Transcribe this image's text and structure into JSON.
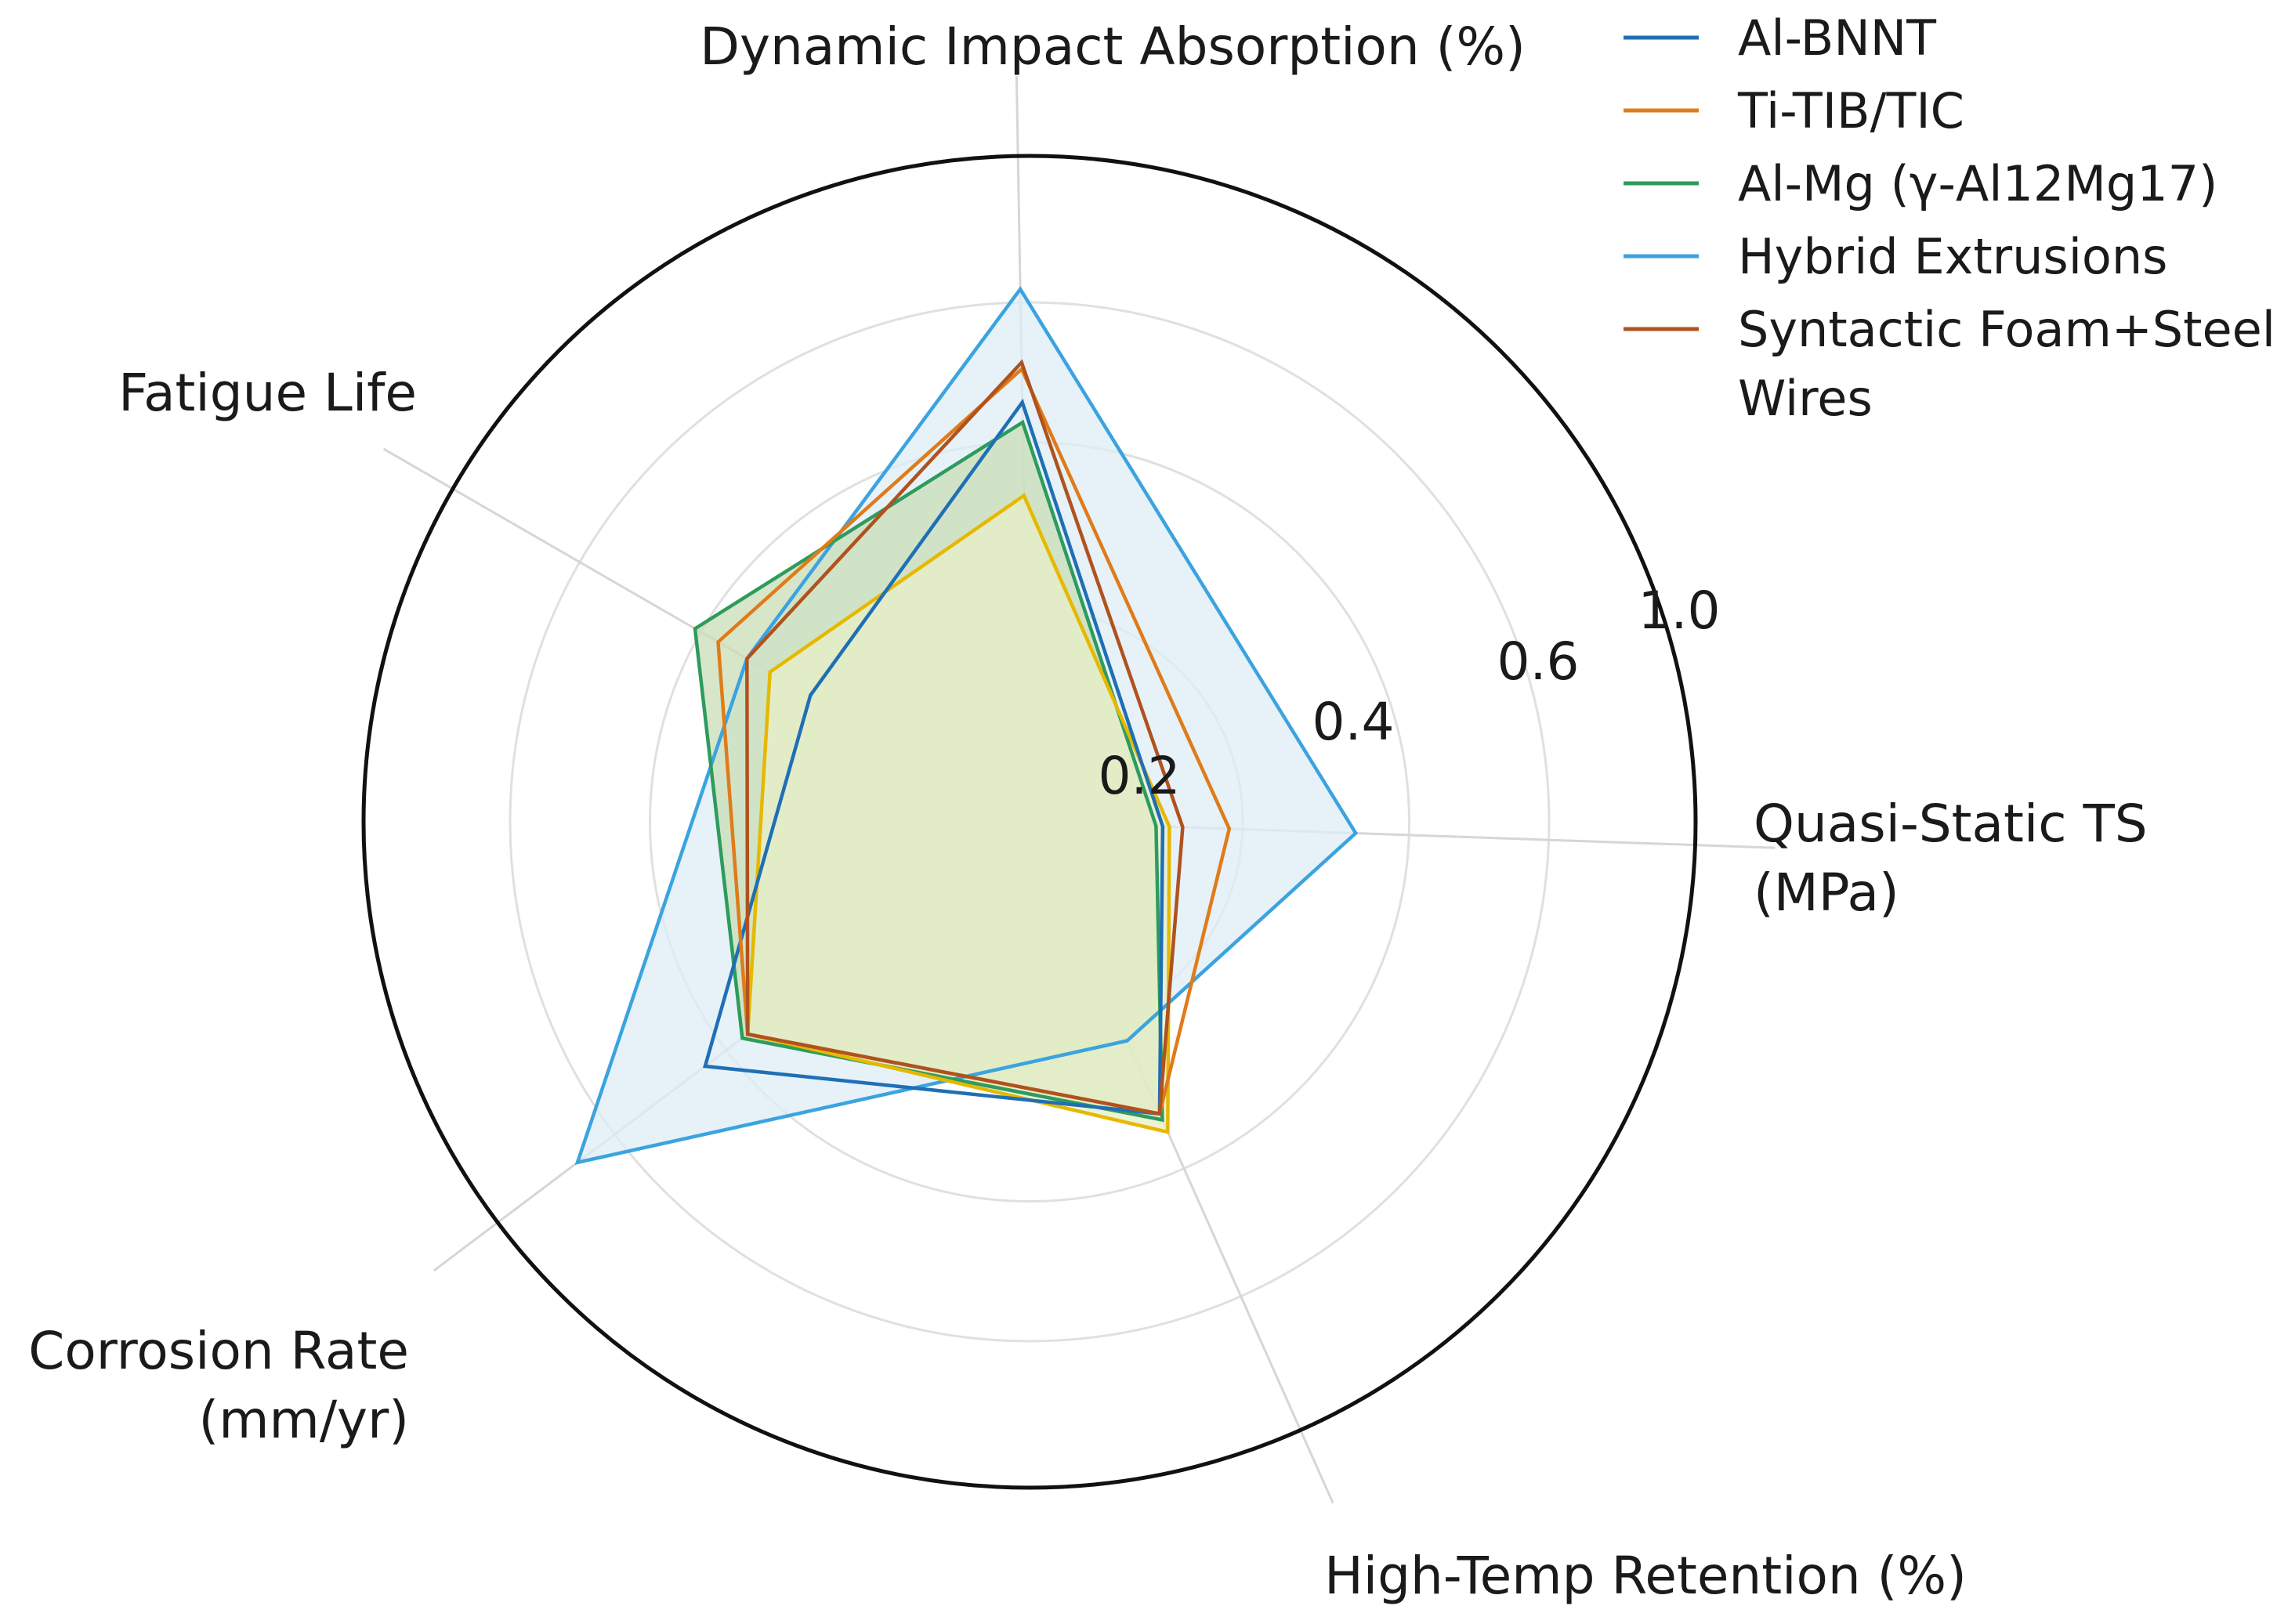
{
  "chart_data": {
    "type": "radar",
    "title": "",
    "axes": [
      {
        "name": "Dynamic Impact Absorption (%)",
        "lines": [
          "Dynamic Impact Absorption (%)"
        ]
      },
      {
        "name": "Quasi-Static TS (MPa)",
        "lines": [
          "Quasi-Static TS",
          "(MPa)"
        ]
      },
      {
        "name": "High-Temp Retention (%)",
        "lines": [
          "High-Temp Retention (%)"
        ]
      },
      {
        "name": "Corrosion Rate (mm/yr)",
        "lines": [
          "Corrosion Rate",
          "(mm/yr)"
        ]
      },
      {
        "name": "Fatigue Life",
        "lines": [
          "Fatigue Life"
        ]
      }
    ],
    "radial_ticks": [
      "0.2",
      "0.4",
      "0.6",
      "1.0"
    ],
    "radial_range": [
      0,
      1.0
    ],
    "series": [
      {
        "name": "Al-BNNT",
        "lines": [
          "Al-BNNT"
        ],
        "color": "#1f6fb5",
        "values": [
          0.63,
          0.2,
          0.48,
          0.61,
          0.38
        ],
        "fill": false
      },
      {
        "name": "Ti-TIB/TIC",
        "lines": [
          "Ti-TIB/TIC"
        ],
        "color": "#e07b1a",
        "values": [
          0.68,
          0.3,
          0.48,
          0.53,
          0.54
        ],
        "fill": false
      },
      {
        "name": "Al-Mg (γ-Al12Mg17)",
        "lines": [
          "Al-Mg (γ-Al12Mg17)"
        ],
        "color": "#2e9b5e",
        "values": [
          0.6,
          0.19,
          0.49,
          0.54,
          0.58
        ],
        "fill": true,
        "fill_color": "#c9ddb6"
      },
      {
        "name": "Hybrid Extrusions",
        "lines": [
          "Hybrid Extrusions"
        ],
        "color": "#3ba3e0",
        "values": [
          0.8,
          0.49,
          0.36,
          0.85,
          0.49
        ],
        "fill": true,
        "fill_color": "#deedf6"
      },
      {
        "name": "Syntactic Foam+Steel Wires",
        "lines": [
          "Syntactic Foam+Steel",
          "Wires"
        ],
        "color": "#b0521e",
        "values": [
          0.69,
          0.23,
          0.48,
          0.53,
          0.49
        ],
        "fill": false
      },
      {
        "name": "",
        "lines": [],
        "color": "#e6b800",
        "values": [
          0.49,
          0.21,
          0.51,
          0.53,
          0.45
        ],
        "fill": true,
        "fill_color": "#e7efc7",
        "in_legend": false
      }
    ],
    "legend_position": "top-right",
    "grid": true
  }
}
